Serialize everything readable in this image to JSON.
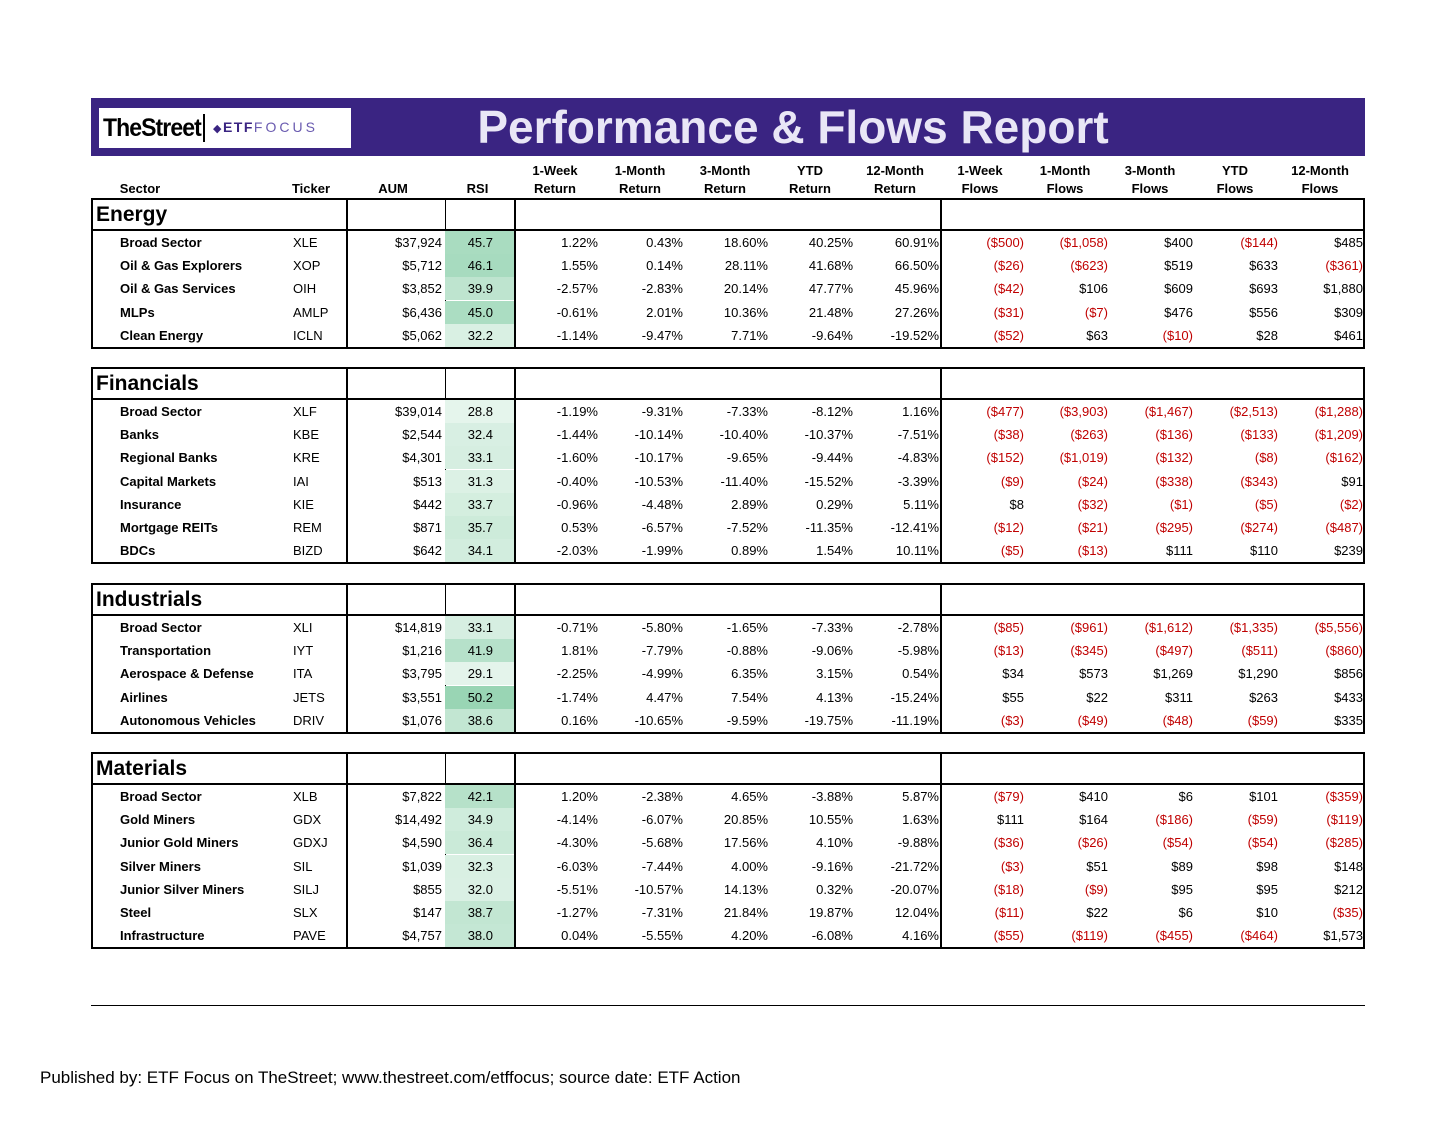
{
  "brand": {
    "thestreet": "TheStreet",
    "etf": "ETF",
    "focus": "FOCUS"
  },
  "title": "Performance & Flows Report",
  "headers": {
    "sector": "Sector",
    "ticker": "Ticker",
    "aum": "AUM",
    "rsi": "RSI",
    "r1w": [
      "1-Week",
      "Return"
    ],
    "r1m": [
      "1-Month",
      "Return"
    ],
    "r3m": [
      "3-Month",
      "Return"
    ],
    "rytd": [
      "YTD",
      "Return"
    ],
    "r12m": [
      "12-Month",
      "Return"
    ],
    "f1w": [
      "1-Week",
      "Flows"
    ],
    "f1m": [
      "1-Month",
      "Flows"
    ],
    "f3m": [
      "3-Month",
      "Flows"
    ],
    "fytd": [
      "YTD",
      "Flows"
    ],
    "f12m": [
      "12-Month",
      "Flows"
    ]
  },
  "colors": {
    "banner": "#3a2482",
    "negative": "#c00000",
    "rsi_low": "#e6f4ec",
    "rsi_high": "#9fd6b8"
  },
  "sections": [
    {
      "name": "Energy",
      "rows": [
        {
          "sector": "Broad Sector",
          "ticker": "XLE",
          "aum": "$37,924",
          "rsi": "45.7",
          "r": [
            "1.22%",
            "0.43%",
            "18.60%",
            "40.25%",
            "60.91%"
          ],
          "f": [
            "($500)",
            "($1,058)",
            "$400",
            "($144)",
            "$485"
          ]
        },
        {
          "sector": "Oil & Gas Explorers",
          "ticker": "XOP",
          "aum": "$5,712",
          "rsi": "46.1",
          "r": [
            "1.55%",
            "0.14%",
            "28.11%",
            "41.68%",
            "66.50%"
          ],
          "f": [
            "($26)",
            "($623)",
            "$519",
            "$633",
            "($361)"
          ]
        },
        {
          "sector": "Oil & Gas Services",
          "ticker": "OIH",
          "aum": "$3,852",
          "rsi": "39.9",
          "r": [
            "-2.57%",
            "-2.83%",
            "20.14%",
            "47.77%",
            "45.96%"
          ],
          "f": [
            "($42)",
            "$106",
            "$609",
            "$693",
            "$1,880"
          ]
        },
        {
          "sector": "MLPs",
          "ticker": "AMLP",
          "aum": "$6,436",
          "rsi": "45.0",
          "r": [
            "-0.61%",
            "2.01%",
            "10.36%",
            "21.48%",
            "27.26%"
          ],
          "f": [
            "($31)",
            "($7)",
            "$476",
            "$556",
            "$309"
          ]
        },
        {
          "sector": "Clean Energy",
          "ticker": "ICLN",
          "aum": "$5,062",
          "rsi": "32.2",
          "r": [
            "-1.14%",
            "-9.47%",
            "7.71%",
            "-9.64%",
            "-19.52%"
          ],
          "f": [
            "($52)",
            "$63",
            "($10)",
            "$28",
            "$461"
          ]
        }
      ]
    },
    {
      "name": "Financials",
      "rows": [
        {
          "sector": "Broad Sector",
          "ticker": "XLF",
          "aum": "$39,014",
          "rsi": "28.8",
          "r": [
            "-1.19%",
            "-9.31%",
            "-7.33%",
            "-8.12%",
            "1.16%"
          ],
          "f": [
            "($477)",
            "($3,903)",
            "($1,467)",
            "($2,513)",
            "($1,288)"
          ]
        },
        {
          "sector": "Banks",
          "ticker": "KBE",
          "aum": "$2,544",
          "rsi": "32.4",
          "r": [
            "-1.44%",
            "-10.14%",
            "-10.40%",
            "-10.37%",
            "-7.51%"
          ],
          "f": [
            "($38)",
            "($263)",
            "($136)",
            "($133)",
            "($1,209)"
          ]
        },
        {
          "sector": "Regional Banks",
          "ticker": "KRE",
          "aum": "$4,301",
          "rsi": "33.1",
          "r": [
            "-1.60%",
            "-10.17%",
            "-9.65%",
            "-9.44%",
            "-4.83%"
          ],
          "f": [
            "($152)",
            "($1,019)",
            "($132)",
            "($8)",
            "($162)"
          ]
        },
        {
          "sector": "Capital Markets",
          "ticker": "IAI",
          "aum": "$513",
          "rsi": "31.3",
          "r": [
            "-0.40%",
            "-10.53%",
            "-11.40%",
            "-15.52%",
            "-3.39%"
          ],
          "f": [
            "($9)",
            "($24)",
            "($338)",
            "($343)",
            "$91"
          ]
        },
        {
          "sector": "Insurance",
          "ticker": "KIE",
          "aum": "$442",
          "rsi": "33.7",
          "r": [
            "-0.96%",
            "-4.48%",
            "2.89%",
            "0.29%",
            "5.11%"
          ],
          "f": [
            "$8",
            "($32)",
            "($1)",
            "($5)",
            "($2)"
          ]
        },
        {
          "sector": "Mortgage REITs",
          "ticker": "REM",
          "aum": "$871",
          "rsi": "35.7",
          "r": [
            "0.53%",
            "-6.57%",
            "-7.52%",
            "-11.35%",
            "-12.41%"
          ],
          "f": [
            "($12)",
            "($21)",
            "($295)",
            "($274)",
            "($487)"
          ]
        },
        {
          "sector": "BDCs",
          "ticker": "BIZD",
          "aum": "$642",
          "rsi": "34.1",
          "r": [
            "-2.03%",
            "-1.99%",
            "0.89%",
            "1.54%",
            "10.11%"
          ],
          "f": [
            "($5)",
            "($13)",
            "$111",
            "$110",
            "$239"
          ]
        }
      ]
    },
    {
      "name": "Industrials",
      "rows": [
        {
          "sector": "Broad Sector",
          "ticker": "XLI",
          "aum": "$14,819",
          "rsi": "33.1",
          "r": [
            "-0.71%",
            "-5.80%",
            "-1.65%",
            "-7.33%",
            "-2.78%"
          ],
          "f": [
            "($85)",
            "($961)",
            "($1,612)",
            "($1,335)",
            "($5,556)"
          ]
        },
        {
          "sector": "Transportation",
          "ticker": "IYT",
          "aum": "$1,216",
          "rsi": "41.9",
          "r": [
            "1.81%",
            "-7.79%",
            "-0.88%",
            "-9.06%",
            "-5.98%"
          ],
          "f": [
            "($13)",
            "($345)",
            "($497)",
            "($511)",
            "($860)"
          ]
        },
        {
          "sector": "Aerospace & Defense",
          "ticker": "ITA",
          "aum": "$3,795",
          "rsi": "29.1",
          "r": [
            "-2.25%",
            "-4.99%",
            "6.35%",
            "3.15%",
            "0.54%"
          ],
          "f": [
            "$34",
            "$573",
            "$1,269",
            "$1,290",
            "$856"
          ]
        },
        {
          "sector": "Airlines",
          "ticker": "JETS",
          "aum": "$3,551",
          "rsi": "50.2",
          "r": [
            "-1.74%",
            "4.47%",
            "7.54%",
            "4.13%",
            "-15.24%"
          ],
          "f": [
            "$55",
            "$22",
            "$311",
            "$263",
            "$433"
          ]
        },
        {
          "sector": "Autonomous Vehicles",
          "ticker": "DRIV",
          "aum": "$1,076",
          "rsi": "38.6",
          "r": [
            "0.16%",
            "-10.65%",
            "-9.59%",
            "-19.75%",
            "-11.19%"
          ],
          "f": [
            "($3)",
            "($49)",
            "($48)",
            "($59)",
            "$335"
          ]
        }
      ]
    },
    {
      "name": "Materials",
      "rows": [
        {
          "sector": "Broad Sector",
          "ticker": "XLB",
          "aum": "$7,822",
          "rsi": "42.1",
          "r": [
            "1.20%",
            "-2.38%",
            "4.65%",
            "-3.88%",
            "5.87%"
          ],
          "f": [
            "($79)",
            "$410",
            "$6",
            "$101",
            "($359)"
          ]
        },
        {
          "sector": "Gold Miners",
          "ticker": "GDX",
          "aum": "$14,492",
          "rsi": "34.9",
          "r": [
            "-4.14%",
            "-6.07%",
            "20.85%",
            "10.55%",
            "1.63%"
          ],
          "f": [
            "$111",
            "$164",
            "($186)",
            "($59)",
            "($119)"
          ]
        },
        {
          "sector": "Junior Gold Miners",
          "ticker": "GDXJ",
          "aum": "$4,590",
          "rsi": "36.4",
          "r": [
            "-4.30%",
            "-5.68%",
            "17.56%",
            "4.10%",
            "-9.88%"
          ],
          "f": [
            "($36)",
            "($26)",
            "($54)",
            "($54)",
            "($285)"
          ]
        },
        {
          "sector": "Silver Miners",
          "ticker": "SIL",
          "aum": "$1,039",
          "rsi": "32.3",
          "r": [
            "-6.03%",
            "-7.44%",
            "4.00%",
            "-9.16%",
            "-21.72%"
          ],
          "f": [
            "($3)",
            "$51",
            "$89",
            "$98",
            "$148"
          ]
        },
        {
          "sector": "Junior Silver Miners",
          "ticker": "SILJ",
          "aum": "$855",
          "rsi": "32.0",
          "r": [
            "-5.51%",
            "-10.57%",
            "14.13%",
            "0.32%",
            "-20.07%"
          ],
          "f": [
            "($18)",
            "($9)",
            "$95",
            "$95",
            "$212"
          ]
        },
        {
          "sector": "Steel",
          "ticker": "SLX",
          "aum": "$147",
          "rsi": "38.7",
          "r": [
            "-1.27%",
            "-7.31%",
            "21.84%",
            "19.87%",
            "12.04%"
          ],
          "f": [
            "($11)",
            "$22",
            "$6",
            "$10",
            "($35)"
          ]
        },
        {
          "sector": "Infrastructure",
          "ticker": "PAVE",
          "aum": "$4,757",
          "rsi": "38.0",
          "r": [
            "0.04%",
            "-5.55%",
            "4.20%",
            "-6.08%",
            "4.16%"
          ],
          "f": [
            "($55)",
            "($119)",
            "($455)",
            "($464)",
            "$1,573"
          ]
        }
      ]
    }
  ],
  "footer": "Published by: ETF Focus on TheStreet; www.thestreet.com/etffocus; source date: ETF Action"
}
